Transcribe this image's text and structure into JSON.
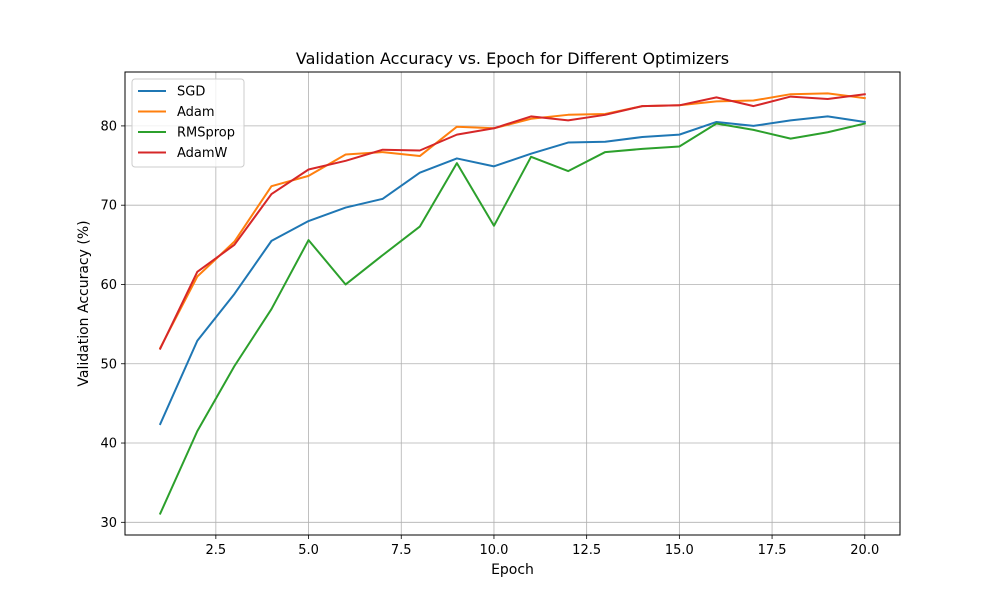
{
  "chart_data": {
    "type": "line",
    "title": "Validation Accuracy vs. Epoch for Different Optimizers",
    "xlabel": "Epoch",
    "ylabel": "Validation Accuracy (%)",
    "xlim": [
      0.05,
      20.95
    ],
    "ylim": [
      28.4,
      86.8
    ],
    "xticks": [
      2.5,
      5.0,
      7.5,
      10.0,
      12.5,
      15.0,
      17.5,
      20.0
    ],
    "xtick_labels": [
      "2.5",
      "5.0",
      "7.5",
      "10.0",
      "12.5",
      "15.0",
      "17.5",
      "20.0"
    ],
    "yticks": [
      30,
      40,
      50,
      60,
      70,
      80
    ],
    "ytick_labels": [
      "30",
      "40",
      "50",
      "60",
      "70",
      "80"
    ],
    "grid": true,
    "legend_position": "top-left",
    "x": [
      1,
      2,
      3,
      4,
      5,
      6,
      7,
      8,
      9,
      10,
      11,
      12,
      13,
      14,
      15,
      16,
      17,
      18,
      19,
      20
    ],
    "series": [
      {
        "name": "SGD",
        "color": "#1f77b4",
        "values": [
          42.4,
          52.9,
          58.8,
          65.5,
          68.0,
          69.7,
          70.8,
          74.1,
          75.9,
          74.9,
          76.5,
          77.9,
          78.0,
          78.6,
          78.9,
          80.5,
          80.0,
          80.7,
          81.2,
          80.5
        ]
      },
      {
        "name": "Adam",
        "color": "#ff7f0e",
        "values": [
          52.0,
          61.0,
          65.4,
          72.4,
          73.7,
          76.4,
          76.7,
          76.2,
          79.9,
          79.7,
          80.9,
          81.4,
          81.5,
          82.5,
          82.6,
          83.1,
          83.2,
          84.0,
          84.1,
          83.5
        ]
      },
      {
        "name": "RMSprop",
        "color": "#2ca02c",
        "values": [
          31.1,
          41.5,
          49.7,
          56.9,
          65.6,
          60.0,
          63.7,
          67.3,
          75.3,
          67.4,
          76.1,
          74.3,
          76.7,
          77.1,
          77.4,
          80.3,
          79.5,
          78.4,
          79.2,
          80.3
        ]
      },
      {
        "name": "AdamW",
        "color": "#d62728",
        "values": [
          51.9,
          61.6,
          65.0,
          71.4,
          74.5,
          75.6,
          77.0,
          76.9,
          78.9,
          79.7,
          81.2,
          80.7,
          81.4,
          82.5,
          82.6,
          83.6,
          82.5,
          83.7,
          83.4,
          84.0
        ]
      }
    ]
  }
}
